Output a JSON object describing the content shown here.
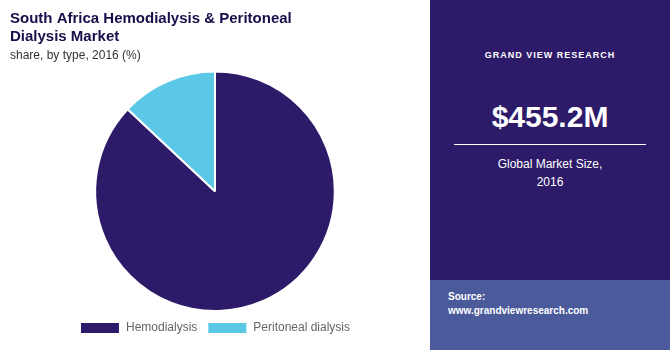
{
  "chart_data": {
    "type": "pie",
    "title": [
      "South Africa Hemodialysis & Peritoneal",
      "Dialysis Market"
    ],
    "subtitle": "share, by type, 2016 (%)",
    "categories": [
      "Hemodialysis",
      "Peritoneal dialysis"
    ],
    "values": [
      87,
      13
    ],
    "colors": [
      "#2d1b69",
      "#5bc8e8"
    ],
    "legend": "bottom",
    "annotations": [
      "GRAND VIEW RESEARCH",
      "$455.2M",
      "Global Market Size,\n2016",
      "Source:\nwww.grandviewresearch.com"
    ]
  }
}
